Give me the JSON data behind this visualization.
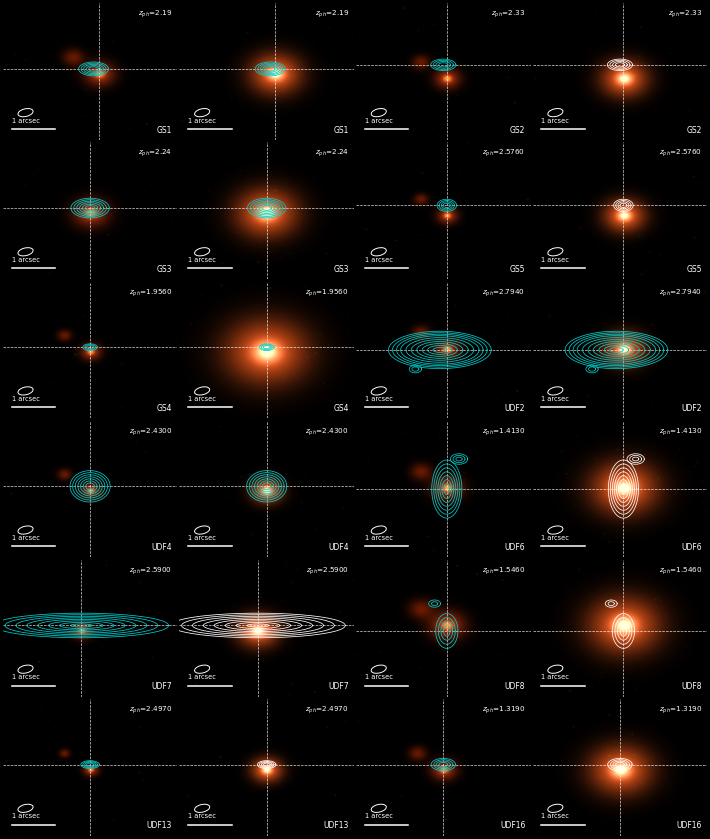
{
  "figure_width": 7.1,
  "figure_height": 8.39,
  "dpi": 100,
  "n_rows": 6,
  "n_cols": 4,
  "background_color": "#000000",
  "panels": [
    {
      "row": 0,
      "col": 0,
      "name": "GS1",
      "z": "2.19",
      "bg": "dark",
      "gx": 0.55,
      "gy": 0.52,
      "gsz": 0.06,
      "contour_type": "small_oval",
      "cc": "#00cccc"
    },
    {
      "row": 0,
      "col": 1,
      "name": "GS1",
      "z": "2.19",
      "bg": "light",
      "gx": 0.55,
      "gy": 0.52,
      "gsz": 0.1,
      "contour_type": "small_oval",
      "cc": "#00cccc"
    },
    {
      "row": 0,
      "col": 2,
      "name": "GS2",
      "z": "2.33",
      "bg": "dark",
      "gx": 0.52,
      "gy": 0.55,
      "gsz": 0.05,
      "contour_type": "small_oval2",
      "cc": "#00cccc"
    },
    {
      "row": 0,
      "col": 3,
      "name": "GS2",
      "z": "2.33",
      "bg": "light",
      "gx": 0.52,
      "gy": 0.55,
      "gsz": 0.09,
      "contour_type": "small_oval2",
      "cc": "white"
    },
    {
      "row": 1,
      "col": 0,
      "name": "GS3",
      "z": "2.24",
      "bg": "dark",
      "gx": 0.5,
      "gy": 0.52,
      "gsz": 0.07,
      "contour_type": "medium_oval",
      "cc": "#00cccc"
    },
    {
      "row": 1,
      "col": 1,
      "name": "GS3",
      "z": "2.24",
      "bg": "light",
      "gx": 0.5,
      "gy": 0.52,
      "gsz": 0.12,
      "contour_type": "medium_oval",
      "cc": "#00cccc"
    },
    {
      "row": 1,
      "col": 2,
      "name": "GS5",
      "z": "2.5760",
      "bg": "dark",
      "gx": 0.52,
      "gy": 0.54,
      "gsz": 0.04,
      "contour_type": "tiny_round",
      "cc": "#00cccc"
    },
    {
      "row": 1,
      "col": 3,
      "name": "GS5",
      "z": "2.5760",
      "bg": "light",
      "gx": 0.52,
      "gy": 0.54,
      "gsz": 0.08,
      "contour_type": "tiny_round",
      "cc": "white"
    },
    {
      "row": 2,
      "col": 0,
      "name": "GS4",
      "z": "1.9560",
      "bg": "dark",
      "gx": 0.5,
      "gy": 0.52,
      "gsz": 0.04,
      "contour_type": "dot_oval",
      "cc": "#00cccc"
    },
    {
      "row": 2,
      "col": 1,
      "name": "GS4",
      "z": "1.9560",
      "bg": "light",
      "gx": 0.5,
      "gy": 0.52,
      "gsz": 0.16,
      "contour_type": "dot_oval",
      "cc": "#00cccc"
    },
    {
      "row": 2,
      "col": 2,
      "name": "UDF2",
      "z": "2.7940",
      "bg": "dark",
      "gx": 0.52,
      "gy": 0.5,
      "gsz": 0.05,
      "contour_type": "large_complex",
      "cc": "#00cccc"
    },
    {
      "row": 2,
      "col": 3,
      "name": "UDF2",
      "z": "2.7940",
      "bg": "light",
      "gx": 0.52,
      "gy": 0.5,
      "gsz": 0.08,
      "contour_type": "large_complex",
      "cc": "#00cccc"
    },
    {
      "row": 3,
      "col": 0,
      "name": "UDF4",
      "z": "2.4300",
      "bg": "dark",
      "gx": 0.5,
      "gy": 0.52,
      "gsz": 0.04,
      "contour_type": "medium_round",
      "cc": "#00cccc"
    },
    {
      "row": 3,
      "col": 1,
      "name": "UDF4",
      "z": "2.4300",
      "bg": "light",
      "gx": 0.5,
      "gy": 0.52,
      "gsz": 0.06,
      "contour_type": "medium_round",
      "cc": "#00cccc"
    },
    {
      "row": 3,
      "col": 2,
      "name": "UDF6",
      "z": "1.4130",
      "bg": "dark",
      "gx": 0.52,
      "gy": 0.5,
      "gsz": 0.06,
      "contour_type": "tall_complex",
      "cc": "#00cccc"
    },
    {
      "row": 3,
      "col": 3,
      "name": "UDF6",
      "z": "1.4130",
      "bg": "light",
      "gx": 0.52,
      "gy": 0.5,
      "gsz": 0.13,
      "contour_type": "tall_complex",
      "cc": "white"
    },
    {
      "row": 4,
      "col": 0,
      "name": "UDF7",
      "z": "2.5900",
      "bg": "dark",
      "gx": 0.45,
      "gy": 0.52,
      "gsz": 0.04,
      "contour_type": "wide_horiz",
      "cc": "#00cccc"
    },
    {
      "row": 4,
      "col": 1,
      "name": "UDF7",
      "z": "2.5900",
      "bg": "light",
      "gx": 0.45,
      "gy": 0.52,
      "gsz": 0.08,
      "contour_type": "wide_horiz",
      "cc": "white"
    },
    {
      "row": 4,
      "col": 2,
      "name": "UDF8",
      "z": "1.5460",
      "bg": "dark",
      "gx": 0.52,
      "gy": 0.48,
      "gsz": 0.07,
      "contour_type": "arc_shape",
      "cc": "#00cccc"
    },
    {
      "row": 4,
      "col": 3,
      "name": "UDF8",
      "z": "1.5460",
      "bg": "light",
      "gx": 0.52,
      "gy": 0.48,
      "gsz": 0.14,
      "contour_type": "arc_shape",
      "cc": "white"
    },
    {
      "row": 5,
      "col": 0,
      "name": "UDF13",
      "z": "2.4970",
      "bg": "dark",
      "gx": 0.5,
      "gy": 0.52,
      "gsz": 0.03,
      "contour_type": "tiny_oval2",
      "cc": "#00cccc"
    },
    {
      "row": 5,
      "col": 1,
      "name": "UDF13",
      "z": "2.4970",
      "bg": "light",
      "gx": 0.5,
      "gy": 0.52,
      "gsz": 0.06,
      "contour_type": "tiny_oval2",
      "cc": "white"
    },
    {
      "row": 5,
      "col": 2,
      "name": "UDF16",
      "z": "1.3190",
      "bg": "dark",
      "gx": 0.5,
      "gy": 0.52,
      "gsz": 0.05,
      "contour_type": "small_oval3",
      "cc": "#00cccc"
    },
    {
      "row": 5,
      "col": 3,
      "name": "UDF16",
      "z": "1.3190",
      "bg": "light",
      "gx": 0.5,
      "gy": 0.52,
      "gsz": 0.12,
      "contour_type": "small_oval3",
      "cc": "white"
    }
  ]
}
